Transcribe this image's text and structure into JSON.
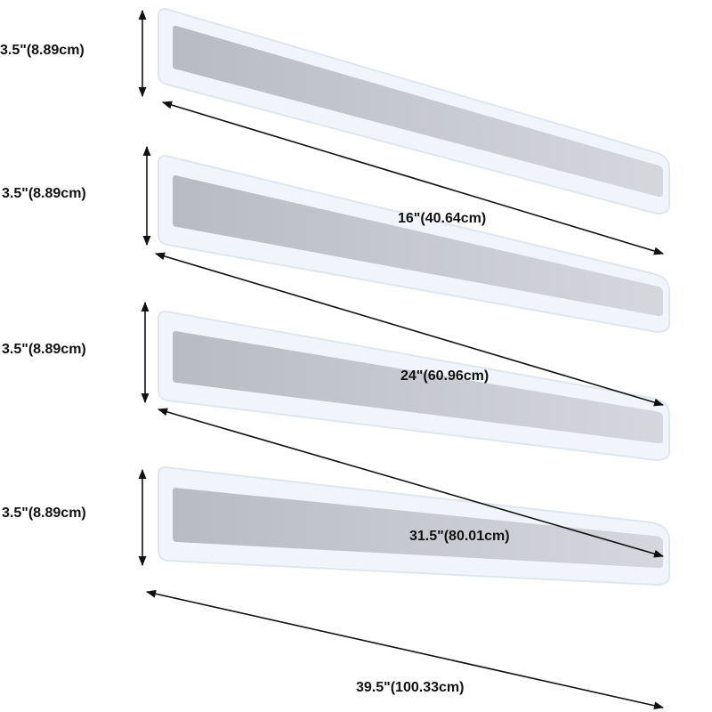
{
  "height_label": "3.5\"(8.89cm)",
  "lamps": [
    {
      "length_label": "16\"(40.64cm)"
    },
    {
      "length_label": "24\"(60.96cm)"
    },
    {
      "length_label": "31.5\"(80.01cm)"
    },
    {
      "length_label": "39.5\"(100.33cm)"
    }
  ],
  "colors": {
    "frame": "#f1f5fb",
    "frame_edge": "#dfe6f0",
    "panel": "#c9cbd2",
    "arrow": "#111111"
  }
}
